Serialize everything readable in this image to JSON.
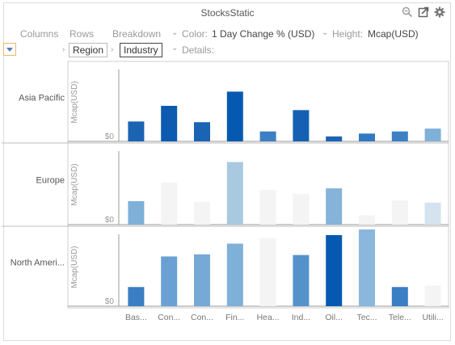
{
  "window": {
    "title": "StocksStatic"
  },
  "icons": {
    "zoom": "zoom-out-icon",
    "popout": "popout-icon",
    "settings": "gear-icon"
  },
  "toolbar": {
    "columns_label": "Columns",
    "rows_label": "Rows",
    "breakdown_label": "Breakdown",
    "color_label": "Color:",
    "color_value": "1 Day Change % (USD)",
    "height_label": "Height:",
    "height_value": "Mcap(USD)",
    "rows_items": [
      "Region",
      "Industry"
    ],
    "details_label": "Details:"
  },
  "chart_data": {
    "type": "bar",
    "ylabel": "Mcap(USD)",
    "zero_label": "$0",
    "categories": [
      "Bas...",
      "Con...",
      "Con...",
      "Fin...",
      "Hea...",
      "Ind...",
      "Oil...",
      "Tec...",
      "Tele...",
      "Utili..."
    ],
    "panels": [
      {
        "name": "Asia Pacific",
        "values": [
          0.28,
          0.5,
          0.27,
          0.7,
          0.14,
          0.44,
          0.07,
          0.11,
          0.14,
          0.18
        ],
        "colors": [
          "#1b63b3",
          "#0d5bb0",
          "#1b63b3",
          "#0659b0",
          "#3d7fc3",
          "#1560b2",
          "#1b63b3",
          "#3179c0",
          "#3d80c3",
          "#7fb0d8"
        ]
      },
      {
        "name": "Europe",
        "values": [
          0.33,
          0.59,
          0.32,
          0.88,
          0.49,
          0.43,
          0.51,
          0.13,
          0.34,
          0.31
        ],
        "colors": [
          "#7fb0d8",
          "#f4f4f4",
          "#f4f4f4",
          "#a8c9df",
          "#f4f4f4",
          "#f4f4f4",
          "#85b3d9",
          "#f4f4f4",
          "#f4f4f4",
          "#d4e3ef"
        ]
      },
      {
        "name": "North Ameri...",
        "values": [
          0.27,
          0.7,
          0.73,
          0.88,
          0.96,
          0.72,
          1.0,
          1.08,
          0.27,
          0.29
        ],
        "colors": [
          "#3a7ec3",
          "#6aa1d2",
          "#76a9d5",
          "#7fb0d8",
          "#f4f4f4",
          "#5592ca",
          "#0659b0",
          "#8ab7db",
          "#3a7ec3",
          "#f4f4f4"
        ]
      }
    ]
  }
}
